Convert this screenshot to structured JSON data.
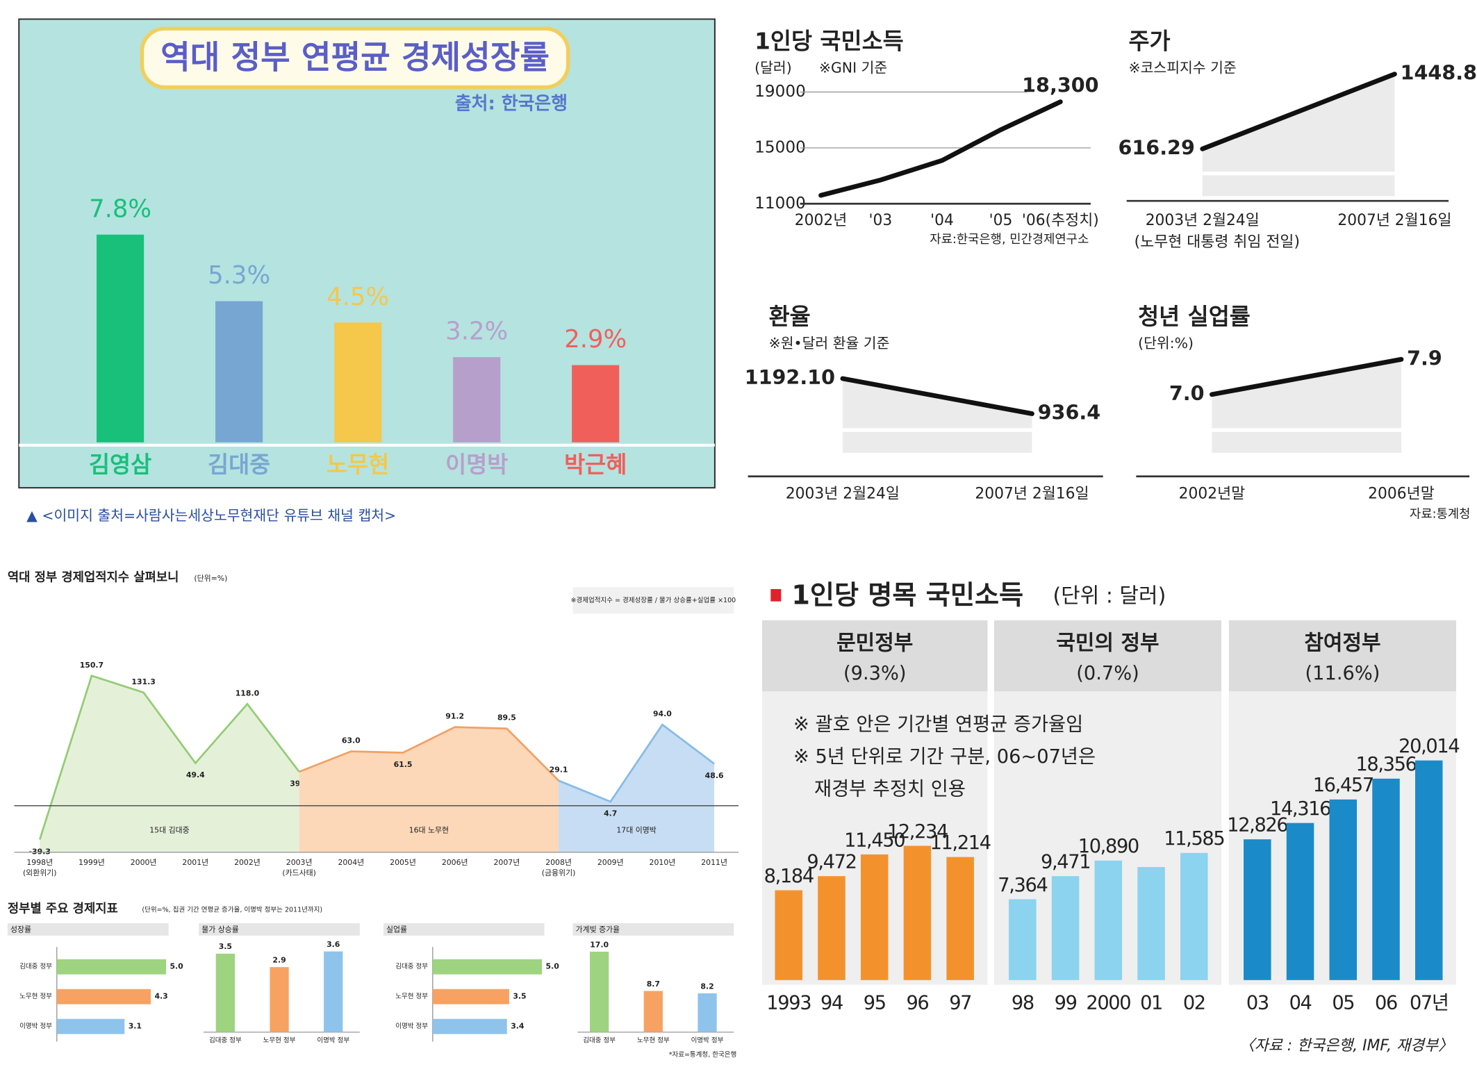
{
  "caption": "▲ <이미지 출처=사람사는세상노무현재단 유튜브 채널 캡처>",
  "indicator_section": {
    "title": "정부별 주요 경제지표",
    "unit": "(단위=%, 집권 기간 연평균 증가율, 이명박 정부는 2011년까지)",
    "source": "*자료=통계청, 한국은행"
  },
  "chart_data": [
    {
      "type": "bar",
      "title": "역대 정부 연평균 경제성장률",
      "source": "출처: 한국은행",
      "categories": [
        "김영삼",
        "김대중",
        "노무현",
        "이명박",
        "박근혜"
      ],
      "values": [
        7.8,
        5.3,
        4.5,
        3.2,
        2.9
      ],
      "value_labels": [
        "7.8%",
        "5.3%",
        "4.5%",
        "3.2%",
        "2.9%"
      ],
      "colors": [
        "#18c07a",
        "#78a6d2",
        "#f5c74a",
        "#b79fcb",
        "#f15f5b"
      ],
      "ylim": [
        0,
        8
      ]
    },
    {
      "type": "line",
      "title": "1인당 국민소득",
      "unit": "(달러)",
      "subtitle": "※GNI 기준",
      "categories": [
        "2002년",
        "'03",
        "'04",
        "'05",
        "'06(추정치)"
      ],
      "values": [
        11600,
        12700,
        14100,
        16300,
        18300
      ],
      "value_labels": [
        null,
        null,
        null,
        null,
        "18,300"
      ],
      "ylim": [
        11000,
        19000
      ],
      "yticks": [
        11000,
        15000,
        19000
      ],
      "color": "#111111",
      "source": "자료:한국은행, 민간경제연구소"
    },
    {
      "type": "line",
      "title": "주가",
      "subtitle": "※코스피지수 기준",
      "categories": [
        "2003년 2월24일",
        "2007년 2월16일"
      ],
      "x_note": "(노무현 대통령 취임 전일)",
      "values": [
        616.29,
        1448.81
      ],
      "value_labels": [
        "616.29",
        "1448.81"
      ],
      "ylim": [
        0,
        1600
      ],
      "color": "#111111"
    },
    {
      "type": "line",
      "title": "환율",
      "subtitle": "※원•달러 환율 기준",
      "categories": [
        "2003년 2월24일",
        "2007년 2월16일"
      ],
      "values": [
        1192.1,
        936.4
      ],
      "value_labels": [
        "1192.10",
        "936.4"
      ],
      "ylim": [
        480,
        1300
      ],
      "color": "#111111"
    },
    {
      "type": "line",
      "title": "청년 실업률",
      "unit": "(단위:%)",
      "categories": [
        "2002년말",
        "2006년말"
      ],
      "values": [
        7.0,
        7.9
      ],
      "value_labels": [
        "7.0",
        "7.9"
      ],
      "ylim": [
        4.9,
        8.2
      ],
      "color": "#111111",
      "source": "자료:통계청"
    },
    {
      "type": "area",
      "title": "역대 정부 경제업적지수 살펴보니",
      "unit": "(단위=%)",
      "formula": "※경제업적지수 = 경제성장률 / 물가 상승률+실업률 ×100",
      "categories": [
        "1998년",
        "1999년",
        "2000년",
        "2001년",
        "2002년",
        "2003년",
        "2004년",
        "2005년",
        "2006년",
        "2007년",
        "2008년",
        "2009년",
        "2010년",
        "2011년"
      ],
      "x_notes": [
        "(외환위기)",
        null,
        null,
        null,
        null,
        "(카드사태)",
        null,
        null,
        null,
        null,
        "(금융위기)",
        null,
        null,
        null
      ],
      "ylim": [
        -54,
        170
      ],
      "series": [
        {
          "name": "15대 김대중",
          "color": "#93cc74",
          "fill": "#e5f0d9",
          "values": [
            -39.3,
            150.7,
            131.3,
            49.4,
            118.0,
            39.4,
            null,
            null,
            null,
            null,
            null,
            null,
            null,
            null
          ],
          "value_labels": [
            "-39.3",
            "150.7",
            "131.3",
            "49.4",
            "118.0",
            "39.4",
            null,
            null,
            null,
            null,
            null,
            null,
            null,
            null
          ]
        },
        {
          "name": "16대 노무현",
          "color": "#f3a064",
          "fill": "#fcd8b9",
          "values": [
            null,
            null,
            null,
            null,
            null,
            39.4,
            63.0,
            61.5,
            91.2,
            89.5,
            29.1,
            null,
            null,
            null
          ],
          "value_labels": [
            null,
            null,
            null,
            null,
            null,
            null,
            "63.0",
            "61.5",
            "91.2",
            "89.5",
            "29.1",
            null,
            null,
            null
          ]
        },
        {
          "name": "17대 이명박",
          "color": "#86bbe8",
          "fill": "#c7ddf3",
          "values": [
            null,
            null,
            null,
            null,
            null,
            null,
            null,
            null,
            null,
            null,
            29.1,
            4.7,
            94.0,
            48.6
          ],
          "value_labels": [
            null,
            null,
            null,
            null,
            null,
            null,
            null,
            null,
            null,
            null,
            null,
            "4.7",
            "94.0",
            "48.6"
          ]
        }
      ]
    },
    {
      "type": "bar",
      "orientation": "horizontal",
      "title": "성장률",
      "categories": [
        "김대중 정부",
        "노무현 정부",
        "이명박 정부"
      ],
      "values": [
        5.0,
        4.3,
        3.1
      ],
      "value_labels": [
        "5.0",
        "4.3",
        "3.1"
      ],
      "colors": [
        "#9ed37f",
        "#f7a263",
        "#8ec3ec"
      ],
      "xlim": [
        0,
        5.2
      ]
    },
    {
      "type": "bar",
      "orientation": "vertical",
      "title": "물가 상승률",
      "categories": [
        "김대중 정부",
        "노무현 정부",
        "이명박 정부"
      ],
      "values": [
        3.5,
        2.9,
        3.6
      ],
      "value_labels": [
        "3.5",
        "2.9",
        "3.6"
      ],
      "colors": [
        "#9ed37f",
        "#f7a263",
        "#8ec3ec"
      ],
      "ylim": [
        0,
        3.8
      ]
    },
    {
      "type": "bar",
      "orientation": "horizontal",
      "title": "실업률",
      "categories": [
        "김대중 정부",
        "노무현 정부",
        "이명박 정부"
      ],
      "values": [
        5.0,
        3.5,
        3.4
      ],
      "value_labels": [
        "5.0",
        "3.5",
        "3.4"
      ],
      "colors": [
        "#9ed37f",
        "#f7a263",
        "#8ec3ec"
      ],
      "xlim": [
        0,
        5.2
      ]
    },
    {
      "type": "bar",
      "orientation": "vertical",
      "title": "가계빚 증가율",
      "categories": [
        "김대중 정부",
        "노무현 정부",
        "이명박 정부"
      ],
      "values": [
        17.0,
        8.7,
        8.2
      ],
      "value_labels": [
        "17.0",
        "8.7",
        "8.2"
      ],
      "colors": [
        "#9ed37f",
        "#f7a263",
        "#8ec3ec"
      ],
      "ylim": [
        0,
        18
      ]
    },
    {
      "type": "bar",
      "title": "1인당 명목 국민소득",
      "unit": "(단위 : 달러)",
      "notes": [
        [
          "※ 괄호 안은 기간별 연평균 증가율임"
        ],
        [
          "※ 5년 단위로 기간 구분, 06~07년은",
          "재경부 추정치 인용"
        ]
      ],
      "ylim": [
        0,
        22000
      ],
      "source": "〈자료 : 한국은행, IMF, 재경부〉",
      "groups": [
        {
          "name": "문민정부",
          "rate": "(9.3%)",
          "color": "#f3922d",
          "categories": [
            "1993",
            "94",
            "95",
            "96",
            "97"
          ],
          "values": [
            8184,
            9472,
            11450,
            12234,
            11214
          ],
          "value_labels": [
            "8,184",
            "9,472",
            "11,450",
            "12,234",
            "11,214"
          ]
        },
        {
          "name": "국민의 정부",
          "rate": "(0.7%)",
          "color": "#8bd3ee",
          "categories": [
            "98",
            "99",
            "2000",
            "01",
            "02"
          ],
          "values": [
            7364,
            9471,
            10890,
            10300,
            11585
          ],
          "value_labels": [
            "7,364",
            "9,471",
            "10,890",
            null,
            "11,585"
          ]
        },
        {
          "name": "참여정부",
          "rate": "(11.6%)",
          "color": "#1a8bc8",
          "categories": [
            "03",
            "04",
            "05",
            "06",
            "07년"
          ],
          "values": [
            12826,
            14316,
            16457,
            18356,
            20014
          ],
          "value_labels": [
            "12,826",
            "14,316",
            "16,457",
            "18,356",
            "20,014"
          ]
        }
      ]
    }
  ]
}
